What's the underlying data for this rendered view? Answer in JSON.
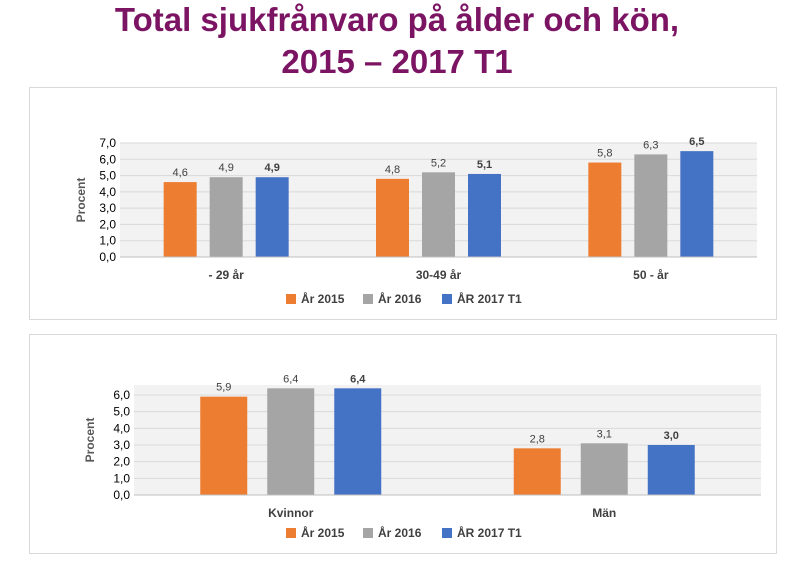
{
  "title": {
    "line1": "Total sjukfrånvaro på ålder och kön,",
    "line2": "2015 – 2017 T1"
  },
  "colors": {
    "series": [
      "#ed7d31",
      "#a5a5a5",
      "#4472c4"
    ],
    "title": "#7b1463",
    "plot_background": "#f2f2f2",
    "gridline": "#d9d9d9"
  },
  "chart_data": [
    {
      "type": "bar",
      "categories": [
        "- 29 år",
        "30-49 år",
        "50 - år"
      ],
      "series": [
        {
          "name": "År 2015",
          "values": [
            4.6,
            4.8,
            5.8
          ],
          "labels": [
            "4,6",
            "4,8",
            "5,8"
          ],
          "bold": false
        },
        {
          "name": "År 2016",
          "values": [
            4.9,
            5.2,
            6.3
          ],
          "labels": [
            "4,9",
            "5,2",
            "6,3"
          ],
          "bold": false
        },
        {
          "name": "ÅR 2017 T1",
          "values": [
            4.9,
            5.1,
            6.5
          ],
          "labels": [
            "4,9",
            "5,1",
            "6,5"
          ],
          "bold": true
        }
      ],
      "title": "",
      "xlabel": "",
      "ylabel": "Procent",
      "ylim": [
        0,
        7
      ],
      "yticks": [
        0,
        1,
        2,
        3,
        4,
        5,
        6,
        7
      ],
      "ytick_labels": [
        "0,0",
        "1,0",
        "2,0",
        "3,0",
        "4,0",
        "5,0",
        "6,0",
        "7,0"
      ],
      "grid": true,
      "legend": "bottom"
    },
    {
      "type": "bar",
      "categories": [
        "Kvinnor",
        "Män"
      ],
      "series": [
        {
          "name": "År 2015",
          "values": [
            5.9,
            2.8
          ],
          "labels": [
            "5,9",
            "2,8"
          ],
          "bold": false
        },
        {
          "name": "År 2016",
          "values": [
            6.4,
            3.1
          ],
          "labels": [
            "6,4",
            "3,1"
          ],
          "bold": false
        },
        {
          "name": "ÅR 2017 T1",
          "values": [
            6.4,
            3.0
          ],
          "labels": [
            "6,4",
            "3,0"
          ],
          "bold": true
        }
      ],
      "title": "",
      "xlabel": "",
      "ylabel": "Procent",
      "ylim": [
        0,
        6.6
      ],
      "yticks": [
        0,
        1,
        2,
        3,
        4,
        5,
        6
      ],
      "ytick_labels": [
        "0,0",
        "1,0",
        "2,0",
        "3,0",
        "4,0",
        "5,0",
        "6,0"
      ],
      "grid": true,
      "legend": "bottom"
    }
  ]
}
